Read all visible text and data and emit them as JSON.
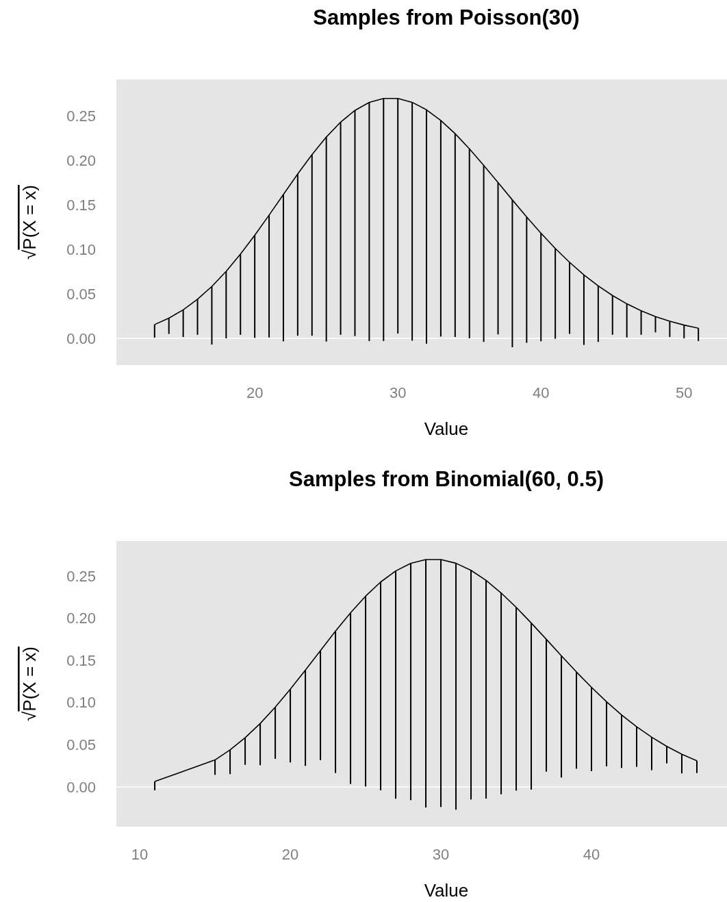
{
  "chart_data": [
    {
      "type": "bar",
      "title": "Samples from Poisson(30)",
      "xlabel": "Value",
      "ylabel": "√P(X = x)",
      "xlim": [
        10.33,
        53.0
      ],
      "xticks": [
        20,
        30,
        40,
        50
      ],
      "ylim": [
        -0.03,
        0.2908
      ],
      "yticks": [
        {
          "value": 0,
          "label": "0.00"
        },
        {
          "value": 0.05,
          "label": "0.05"
        },
        {
          "value": 0.1,
          "label": "0.10"
        },
        {
          "value": 0.15,
          "label": "0.15"
        },
        {
          "value": 0.2,
          "label": "0.20"
        },
        {
          "value": 0.25,
          "label": "0.25"
        }
      ],
      "ref_lines": [
        {
          "axis": "y",
          "value": 0,
          "color": "#ffffff"
        }
      ],
      "series": [
        {
          "color": "#000000",
          "x": [
            13,
            14,
            15,
            16,
            17,
            18,
            19,
            20,
            21,
            22,
            23,
            24,
            25,
            26,
            27,
            28,
            29,
            30,
            31,
            32,
            33,
            34,
            35,
            36,
            37,
            38,
            39,
            40,
            41,
            42,
            43,
            44,
            45,
            46,
            47,
            48,
            49,
            50,
            51
          ],
          "base": [
            0.0008,
            0.005,
            0.0015,
            0.004,
            -0.007,
            0,
            0.004,
            0.0005,
            0.001,
            -0.0033,
            0.003,
            0.003,
            -0.0036,
            0.004,
            0.0026,
            -0.003,
            -0.003,
            0.0054,
            -0.0026,
            -0.006,
            0.002,
            0.0015,
            0,
            -0.004,
            0.0044,
            -0.01,
            -0.005,
            -0.0033,
            -0.0005,
            0.005,
            -0.0074,
            -0.004,
            0.004,
            0.001,
            0.004,
            0.0067,
            0.0015,
            0,
            -0.003
          ],
          "values": [
            0.0147,
            0.0177,
            0.0305,
            0.0399,
            0.0653,
            0.0752,
            0.0906,
            0.1153,
            0.1374,
            0.1649,
            0.1816,
            0.2034,
            0.2297,
            0.2389,
            0.2534,
            0.268,
            0.2725,
            0.2641,
            0.2677,
            0.2627,
            0.2428,
            0.2284,
            0.2129,
            0.1983,
            0.1706,
            0.1655,
            0.1413,
            0.1214,
            0.1015,
            0.0804,
            0.0787,
            0.0629,
            0.0441,
            0.0378,
            0.027,
            0.0178,
            0.0177,
            0.0149,
            0.0144
          ]
        },
        {
          "type": "line",
          "color": "#000000",
          "x": [
            13,
            14,
            15,
            16,
            17,
            18,
            19,
            20,
            21,
            22,
            23,
            24,
            25,
            26,
            27,
            28,
            29,
            30,
            31,
            32,
            33,
            34,
            35,
            36,
            37,
            38,
            39,
            40,
            41,
            42,
            43,
            44,
            45,
            46,
            47,
            48,
            49,
            50,
            51
          ],
          "values": [
            0.0155,
            0.0227,
            0.032,
            0.0439,
            0.0583,
            0.0752,
            0.0946,
            0.1158,
            0.1384,
            0.1616,
            0.1846,
            0.2064,
            0.2261,
            0.2429,
            0.256,
            0.265,
            0.2695,
            0.2695,
            0.2651,
            0.2567,
            0.2448,
            0.2299,
            0.2129,
            0.1943,
            0.175,
            0.1555,
            0.1363,
            0.1181,
            0.101,
            0.0854,
            0.0713,
            0.0589,
            0.0481,
            0.0388,
            0.031,
            0.0245,
            0.0192,
            0.0149,
            0.0114
          ]
        }
      ]
    },
    {
      "type": "bar",
      "title": "Samples from Binomial(60, 0.5)",
      "xlabel": "Value",
      "ylabel": "√P(X = x)",
      "xlim": [
        8.45,
        49.0
      ],
      "xticks": [
        10,
        20,
        30,
        40
      ],
      "ylim": [
        -0.0471,
        0.2914
      ],
      "yticks": [
        {
          "value": 0,
          "label": "0.00"
        },
        {
          "value": 0.05,
          "label": "0.05"
        },
        {
          "value": 0.1,
          "label": "0.10"
        },
        {
          "value": 0.15,
          "label": "0.15"
        },
        {
          "value": 0.2,
          "label": "0.20"
        },
        {
          "value": 0.25,
          "label": "0.25"
        }
      ],
      "ref_lines": [
        {
          "axis": "y",
          "value": 0,
          "color": "#ffffff"
        }
      ],
      "series": [
        {
          "color": "#000000",
          "x": [
            11,
            15,
            16,
            17,
            18,
            19,
            20,
            21,
            22,
            23,
            24,
            25,
            26,
            27,
            28,
            29,
            30,
            31,
            32,
            33,
            34,
            35,
            36,
            37,
            38,
            39,
            40,
            41,
            42,
            43,
            44,
            45,
            46,
            47
          ],
          "base": [
            -0.004,
            0.0143,
            0.0152,
            0.0262,
            0.0257,
            0.0333,
            0.029,
            0.0249,
            0.0317,
            0.0165,
            0.0035,
            0.0005,
            -0.004,
            -0.014,
            -0.0157,
            -0.0244,
            -0.0238,
            -0.027,
            -0.0149,
            -0.0138,
            -0.0087,
            -0.0043,
            -0.0032,
            0.0181,
            0.0111,
            0.0216,
            0.0187,
            0.0244,
            0.0225,
            0.0238,
            0.0198,
            0.0279,
            0.016,
            0.0165
          ],
          "values": [
            0.0104,
            0.0177,
            0.0287,
            0.0321,
            0.0495,
            0.0613,
            0.0868,
            0.1135,
            0.1299,
            0.1681,
            0.2029,
            0.2256,
            0.2469,
            0.27,
            0.2807,
            0.2939,
            0.2933,
            0.2921,
            0.2716,
            0.2586,
            0.2386,
            0.2172,
            0.1975,
            0.1569,
            0.1444,
            0.1147,
            0.0994,
            0.0766,
            0.0629,
            0.0475,
            0.0391,
            0.0202,
            0.0228,
            0.0145
          ]
        },
        {
          "type": "line",
          "color": "#000000",
          "x": [
            11,
            15,
            16,
            17,
            18,
            19,
            20,
            21,
            22,
            23,
            24,
            25,
            26,
            27,
            28,
            29,
            30,
            31,
            32,
            33,
            34,
            35,
            36,
            37,
            38,
            39,
            40,
            41,
            42,
            43,
            44,
            45,
            46,
            47
          ],
          "values": [
            0.0064,
            0.032,
            0.0439,
            0.0583,
            0.0752,
            0.0946,
            0.1158,
            0.1384,
            0.1616,
            0.1846,
            0.2064,
            0.2261,
            0.2429,
            0.256,
            0.265,
            0.2695,
            0.2695,
            0.2651,
            0.2567,
            0.2448,
            0.2299,
            0.2129,
            0.1943,
            0.175,
            0.1555,
            0.1363,
            0.1181,
            0.101,
            0.0854,
            0.0713,
            0.0589,
            0.0481,
            0.0388,
            0.031
          ]
        }
      ]
    }
  ]
}
